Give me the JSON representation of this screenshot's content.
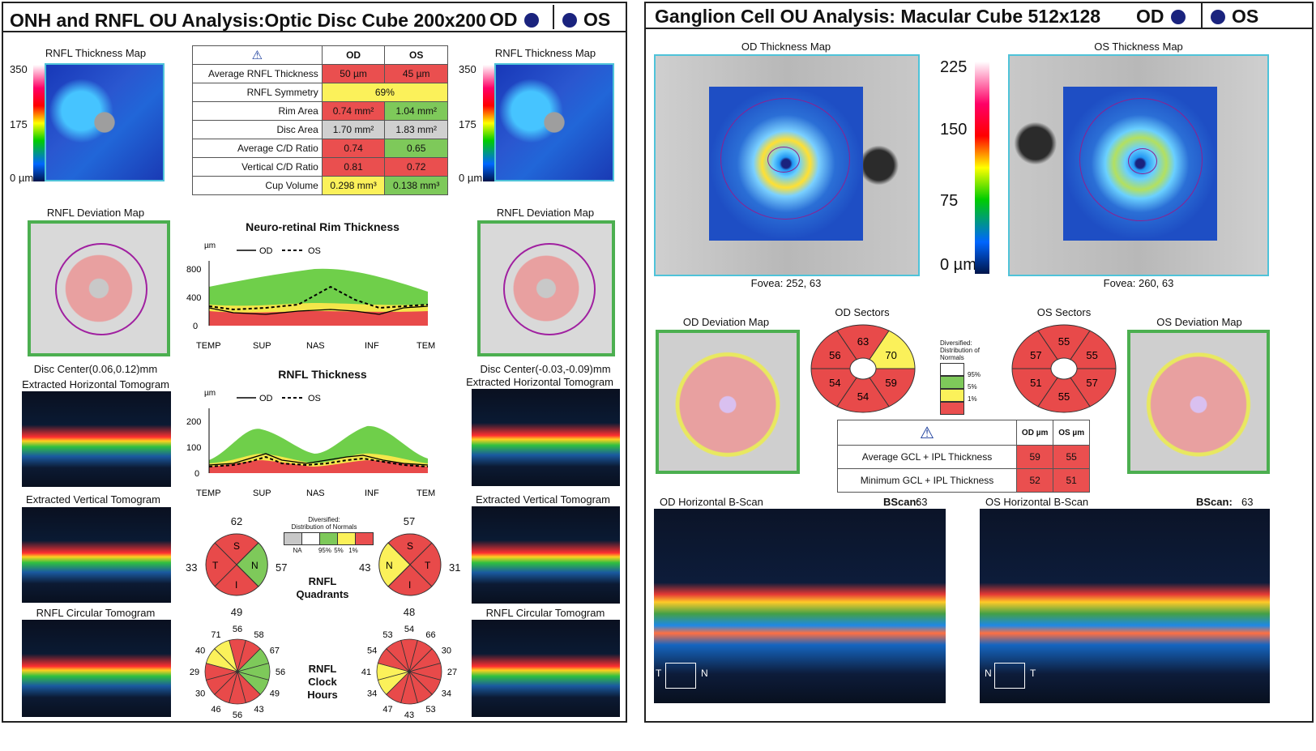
{
  "left": {
    "title": "ONH and RNFL OU Analysis:Optic Disc Cube 200x200",
    "od": "OD",
    "os": "OS",
    "thickness_map_title": "RNFL Thickness Map",
    "scale_top": "350",
    "scale_mid": "175",
    "scale_bot": "0 µm",
    "table": {
      "warn": "⚠",
      "col_od": "OD",
      "col_os": "OS",
      "rows": [
        {
          "label": "Average RNFL Thickness",
          "od": "50 µm",
          "os": "45 µm"
        },
        {
          "label": "RNFL Symmetry",
          "both": "69%"
        },
        {
          "label": "Rim Area",
          "od": "0.74 mm²",
          "os": "1.04 mm²"
        },
        {
          "label": "Disc Area",
          "od": "1.70 mm²",
          "os": "1.83 mm²"
        },
        {
          "label": "Average C/D Ratio",
          "od": "0.74",
          "os": "0.65"
        },
        {
          "label": "Vertical C/D Ratio",
          "od": "0.81",
          "os": "0.72"
        },
        {
          "label": "Cup Volume",
          "od": "0.298 mm³",
          "os": "0.138 mm³"
        }
      ]
    },
    "deviation_map_title": "RNFL Deviation Map",
    "disc_center_od": "Disc Center(0.06,0.12)mm",
    "disc_center_os": "Disc Center(-0.03,-0.09)mm",
    "h_tomo": "Extracted Horizontal Tomogram",
    "v_tomo": "Extracted Vertical Tomogram",
    "c_tomo": "RNFL Circular Tomogram",
    "rim_chart": {
      "title": "Neuro-retinal Rim Thickness",
      "unit": "µm",
      "legend_od": "OD",
      "legend_os": "OS",
      "yticks": [
        "800",
        "400",
        "0"
      ],
      "xticks": [
        "TEMP",
        "SUP",
        "NAS",
        "INF",
        "TEMP"
      ]
    },
    "rnfl_chart": {
      "title": "RNFL Thickness",
      "unit": "µm",
      "legend_od": "OD",
      "legend_os": "OS",
      "yticks": [
        "200",
        "100",
        "0"
      ],
      "xticks": [
        "TEMP",
        "SUP",
        "NAS",
        "INF",
        "TEMP"
      ]
    },
    "quadrants": {
      "title_1": "RNFL",
      "title_2": "Quadrants",
      "od": {
        "top": "62",
        "left": "33",
        "right": "57",
        "bottom": "49",
        "S": "S",
        "T": "T",
        "N": "N",
        "I": "I"
      },
      "os": {
        "top": "57",
        "left": "43",
        "right": "31",
        "bottom": "48",
        "S": "S",
        "N": "N",
        "T": "T",
        "I": "I"
      }
    },
    "legend": {
      "title_1": "Diversified:",
      "title_2": "Distribution of Normals",
      "labels": [
        "NA",
        "95%",
        "5%",
        "1%"
      ]
    },
    "clock": {
      "title_1": "RNFL",
      "title_2": "Clock",
      "title_3": "Hours",
      "od": [
        "56",
        "58",
        "67",
        "56",
        "49",
        "43",
        "56",
        "46",
        "30",
        "29",
        "40",
        "71"
      ],
      "os": [
        "54",
        "66",
        "30",
        "27",
        "34",
        "53",
        "43",
        "47",
        "34",
        "41",
        "54",
        "53"
      ]
    }
  },
  "right": {
    "title": "Ganglion Cell OU Analysis: Macular Cube 512x128",
    "od": "OD",
    "os": "OS",
    "od_thickness_map": "OD Thickness Map",
    "os_thickness_map": "OS Thickness Map",
    "scale": [
      "225",
      "150",
      "75",
      "0 µm"
    ],
    "fovea_od": "Fovea: 252, 63",
    "fovea_os": "Fovea: 260, 63",
    "od_deviation": "OD Deviation Map",
    "os_deviation": "OS Deviation Map",
    "od_sectors_title": "OD Sectors",
    "os_sectors_title": "OS Sectors",
    "od_sectors": [
      "63",
      "70",
      "59",
      "54",
      "54",
      "56"
    ],
    "os_sectors": [
      "55",
      "55",
      "57",
      "55",
      "51",
      "57"
    ],
    "legend": {
      "title": "Diversified: Distribution of Normals",
      "labels": [
        "95%",
        "5%",
        "1%"
      ]
    },
    "gcl_table": {
      "warn": "⚠",
      "col_od": "OD µm",
      "col_os": "OS µm",
      "rows": [
        {
          "label": "Average GCL + IPL Thickness",
          "od": "59",
          "os": "55"
        },
        {
          "label": "Minimum GCL + IPL Thickness",
          "od": "52",
          "os": "51"
        }
      ]
    },
    "od_bscan_title": "OD Horizontal B-Scan",
    "os_bscan_title": "OS Horizontal B-Scan",
    "bscan_label": "BScan:",
    "bscan_od_val": "63",
    "bscan_os_val": "63",
    "od_orient": [
      "T",
      "N"
    ],
    "os_orient": [
      "N",
      "T"
    ]
  }
}
